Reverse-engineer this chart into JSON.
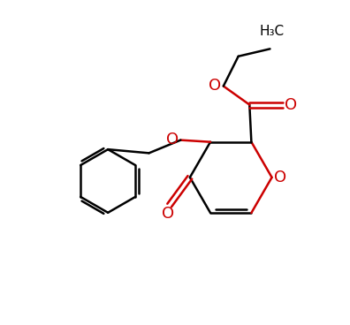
{
  "bg_color": "#ffffff",
  "bond_color_black": "#000000",
  "bond_color_red": "#cc0000",
  "line_width": 1.8,
  "figsize": [
    3.96,
    3.68
  ],
  "dpi": 100,
  "xlim": [
    0,
    9.2
  ],
  "ylim": [
    0,
    8.6
  ]
}
